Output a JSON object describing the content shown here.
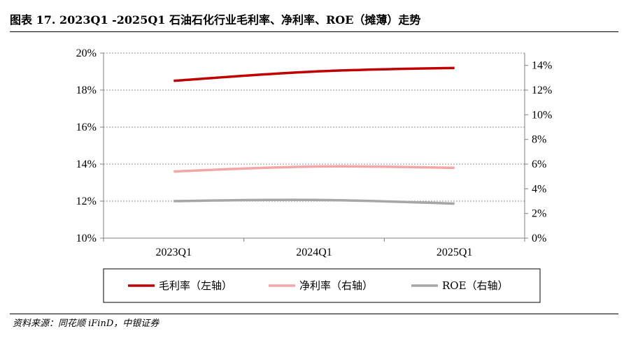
{
  "title": "图表 17. 2023Q1 -2025Q1 石油石化行业毛利率、净利率、ROE（摊薄）走势",
  "source": "资料来源：同花顺 iFinD，中银证券",
  "chart_data": {
    "type": "line",
    "title": "图表 17. 2023Q1 -2025Q1 石油石化行业毛利率、净利率、ROE（摊薄）走势",
    "categories": [
      "2023Q1",
      "2024Q1",
      "2025Q1"
    ],
    "left_axis": {
      "ylim": [
        10,
        20
      ],
      "ticks": [
        10,
        12,
        14,
        16,
        18,
        20
      ],
      "tick_labels": [
        "10%",
        "12%",
        "14%",
        "16%",
        "18%",
        "20%"
      ]
    },
    "right_axis": {
      "ylim": [
        0,
        15
      ],
      "ticks": [
        0,
        2,
        4,
        6,
        8,
        10,
        12,
        14
      ],
      "tick_labels": [
        "0%",
        "2%",
        "4%",
        "6%",
        "8%",
        "10%",
        "12%",
        "14%"
      ]
    },
    "grid": true,
    "legend_position": "bottom",
    "series": [
      {
        "name": "毛利率（左轴）",
        "axis": "left",
        "color": "#c00000",
        "values": [
          18.5,
          19.0,
          19.2
        ]
      },
      {
        "name": "净利率（右轴）",
        "axis": "right",
        "color": "#f4a6a6",
        "values": [
          5.4,
          5.8,
          5.7
        ]
      },
      {
        "name": "ROE（右轴）",
        "axis": "right",
        "color": "#a6a6a6",
        "values": [
          3.0,
          3.1,
          2.8
        ]
      }
    ]
  }
}
